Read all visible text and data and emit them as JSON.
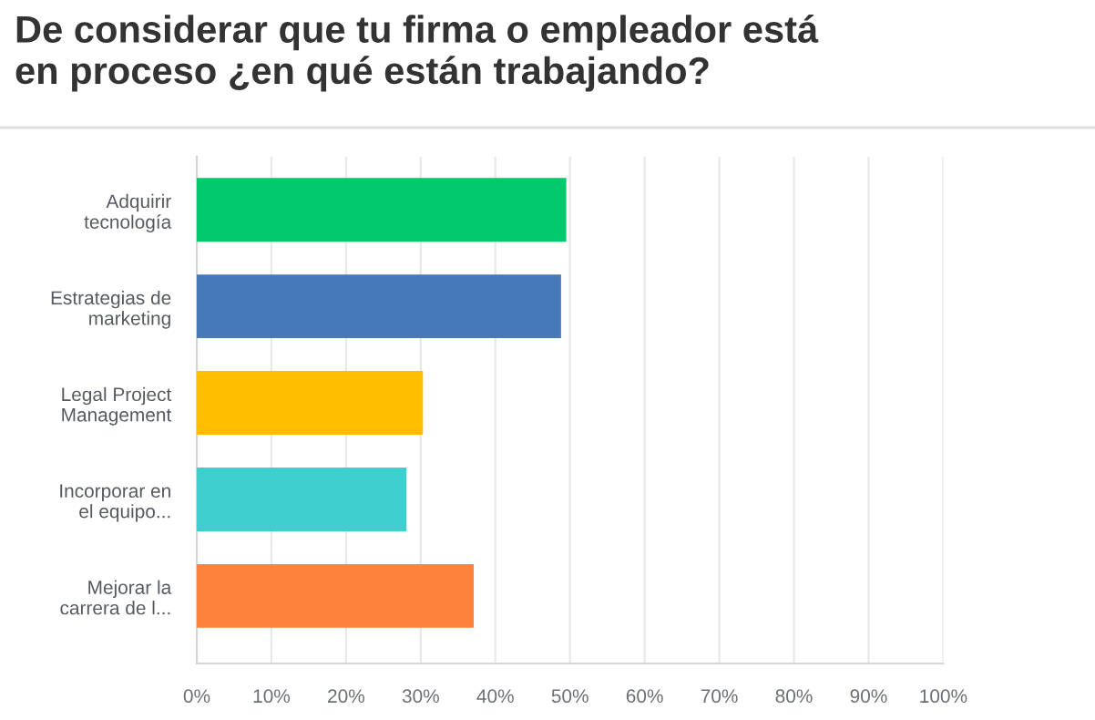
{
  "chart_data": {
    "type": "bar",
    "orientation": "horizontal",
    "title": "De considerar que tu firma o empleador está\nen proceso ¿en qué están trabajando?",
    "categories": [
      "Adquirir\ntecnología",
      "Estrategias de\nmarketing",
      "Legal Project\nManagement",
      "Incorporar en\nel equipo...",
      "Mejorar la\ncarrera de l..."
    ],
    "values": [
      49.5,
      48.8,
      30.3,
      28.1,
      37.1
    ],
    "colors": [
      "#00c86b",
      "#4679b9",
      "#ffbe00",
      "#40cfcf",
      "#ff823c"
    ],
    "xlim": [
      0,
      100
    ],
    "xticks": [
      {
        "value": 0,
        "label": "0%"
      },
      {
        "value": 10,
        "label": "10%"
      },
      {
        "value": 20,
        "label": "20%"
      },
      {
        "value": 30,
        "label": "30%"
      },
      {
        "value": 40,
        "label": "40%"
      },
      {
        "value": 50,
        "label": "50%"
      },
      {
        "value": 60,
        "label": "60%"
      },
      {
        "value": 70,
        "label": "70%"
      },
      {
        "value": 80,
        "label": "80%"
      },
      {
        "value": 90,
        "label": "90%"
      },
      {
        "value": 100,
        "label": "100%"
      }
    ],
    "grid": "x",
    "legend": false
  }
}
